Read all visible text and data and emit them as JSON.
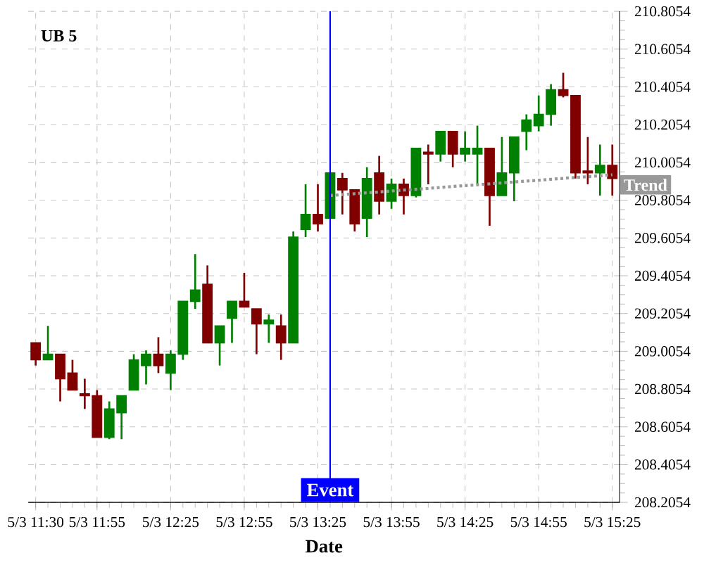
{
  "chart_data": {
    "type": "candlestick",
    "title": "UB 5",
    "xlabel": "Date",
    "categories": [
      "5/3 11:30",
      null,
      null,
      null,
      null,
      "5/3 11:55",
      null,
      null,
      null,
      null,
      null,
      "5/3 12:25",
      null,
      null,
      null,
      null,
      null,
      "5/3 12:55",
      null,
      null,
      null,
      null,
      null,
      "5/3 13:25",
      null,
      null,
      null,
      null,
      null,
      "5/3 13:55",
      null,
      null,
      null,
      null,
      null,
      "5/3 14:25",
      null,
      null,
      null,
      null,
      null,
      "5/3 14:55",
      null,
      null,
      null,
      null,
      null,
      "5/3 15:25"
    ],
    "ohlc": [
      [
        209.05,
        209.05,
        208.93,
        208.96
      ],
      [
        208.96,
        209.14,
        208.96,
        208.99
      ],
      [
        208.99,
        208.99,
        208.74,
        208.86
      ],
      [
        208.89,
        208.96,
        208.8,
        208.8
      ],
      [
        208.78,
        208.86,
        208.7,
        208.77
      ],
      [
        208.77,
        208.8,
        208.55,
        208.55
      ],
      [
        208.55,
        208.74,
        208.54,
        208.7
      ],
      [
        208.68,
        208.77,
        208.54,
        208.77
      ],
      [
        208.8,
        208.99,
        208.8,
        208.96
      ],
      [
        208.93,
        209.01,
        208.83,
        208.99
      ],
      [
        208.99,
        209.08,
        208.89,
        208.93
      ],
      [
        208.89,
        209.01,
        208.8,
        208.99
      ],
      [
        208.99,
        209.27,
        208.96,
        209.27
      ],
      [
        209.27,
        209.52,
        209.23,
        209.33
      ],
      [
        209.36,
        209.46,
        209.05,
        209.05
      ],
      [
        209.05,
        209.14,
        208.93,
        209.14
      ],
      [
        209.18,
        209.27,
        209.05,
        209.27
      ],
      [
        209.27,
        209.42,
        209.24,
        209.24
      ],
      [
        209.23,
        209.23,
        208.99,
        209.15
      ],
      [
        209.15,
        209.2,
        209.05,
        209.17
      ],
      [
        209.14,
        209.2,
        208.96,
        209.05
      ],
      [
        209.05,
        209.64,
        209.05,
        209.61
      ],
      [
        209.65,
        209.89,
        209.61,
        209.73
      ],
      [
        209.73,
        209.89,
        209.64,
        209.68
      ],
      [
        209.71,
        209.95,
        209.71,
        209.95
      ],
      [
        209.92,
        209.95,
        209.73,
        209.86
      ],
      [
        209.86,
        209.86,
        209.64,
        209.68
      ],
      [
        209.71,
        209.98,
        209.61,
        209.92
      ],
      [
        209.95,
        210.04,
        209.73,
        209.8
      ],
      [
        209.8,
        209.92,
        209.76,
        209.89
      ],
      [
        209.89,
        209.92,
        209.73,
        209.83
      ],
      [
        209.83,
        210.08,
        209.82,
        210.08
      ],
      [
        210.06,
        210.1,
        209.89,
        210.05
      ],
      [
        210.05,
        210.17,
        210.01,
        210.17
      ],
      [
        210.17,
        210.17,
        209.98,
        210.05
      ],
      [
        210.05,
        210.17,
        210.01,
        210.08
      ],
      [
        210.05,
        210.2,
        209.89,
        210.08
      ],
      [
        210.08,
        210.08,
        209.67,
        209.83
      ],
      [
        209.83,
        210.14,
        209.83,
        209.95
      ],
      [
        209.95,
        210.14,
        209.8,
        210.14
      ],
      [
        210.17,
        210.26,
        210.07,
        210.23
      ],
      [
        210.2,
        210.36,
        210.17,
        210.26
      ],
      [
        210.26,
        210.42,
        210.2,
        210.39
      ],
      [
        210.39,
        210.48,
        210.35,
        210.36
      ],
      [
        210.36,
        210.36,
        209.92,
        209.95
      ],
      [
        209.96,
        210.14,
        209.89,
        209.95
      ],
      [
        209.95,
        210.1,
        209.83,
        209.99
      ],
      [
        209.99,
        210.1,
        209.83,
        209.92
      ]
    ],
    "colors": [
      "#800000",
      "#008000",
      "#800000",
      "#800000",
      "#800000",
      "#800000",
      "#008000",
      "#008000",
      "#008000",
      "#008000",
      "#800000",
      "#008000",
      "#008000",
      "#008000",
      "#800000",
      "#008000",
      "#008000",
      "#800000",
      "#800000",
      "#008000",
      "#800000",
      "#008000",
      "#008000",
      "#800000",
      "#008000",
      "#800000",
      "#800000",
      "#008000",
      "#800000",
      "#008000",
      "#800000",
      "#008000",
      "#800000",
      "#008000",
      "#800000",
      "#008000",
      "#008000",
      "#800000",
      "#008000",
      "#008000",
      "#008000",
      "#008000",
      "#008000",
      "#800000",
      "#800000",
      "#800000",
      "#008000",
      "#800000"
    ],
    "series": [
      {
        "name": "Trend",
        "type": "line",
        "color": "#999999",
        "line_style": "dotted",
        "values": [
          null,
          null,
          null,
          null,
          null,
          null,
          null,
          null,
          null,
          null,
          null,
          null,
          null,
          null,
          null,
          null,
          null,
          null,
          null,
          null,
          null,
          null,
          null,
          null,
          209.83,
          209.835,
          209.84,
          209.844,
          209.849,
          209.854,
          209.859,
          209.863,
          209.868,
          209.873,
          209.878,
          209.883,
          209.887,
          209.892,
          209.897,
          209.902,
          209.907,
          209.911,
          209.916,
          209.921,
          209.926,
          209.93,
          209.935,
          209.94
        ]
      }
    ],
    "annotations": [
      "Event"
    ],
    "ylim": [
      208.2054,
      210.8054
    ],
    "yticks": [
      208.2054,
      208.4054,
      208.6054,
      208.8054,
      209.0054,
      209.2054,
      209.4054,
      209.6054,
      209.8054,
      210.0054,
      210.2054,
      210.4054,
      210.6054,
      210.8054
    ],
    "grid": true
  }
}
